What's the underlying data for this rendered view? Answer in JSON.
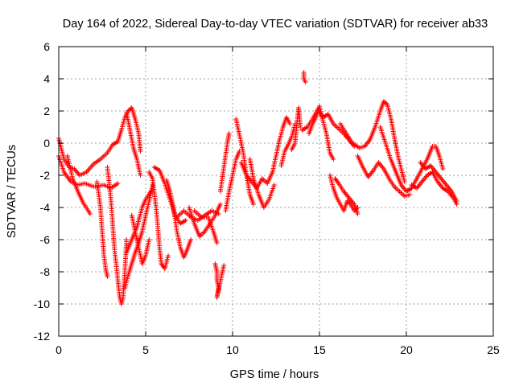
{
  "chart_data": {
    "type": "scatter",
    "title": "Day 164 of 2022, Sidereal Day-to-day VTEC variation (SDTVAR) for receiver ab33",
    "xlabel": "GPS time / hours",
    "ylabel": "SDTVAR / TECUs",
    "xlim": [
      0,
      25
    ],
    "ylim": [
      -12,
      6
    ],
    "xticks": [
      0,
      5,
      10,
      15,
      20,
      25
    ],
    "yticks": [
      -12,
      -10,
      -8,
      -6,
      -4,
      -2,
      0,
      2,
      4,
      6
    ],
    "xtick_labels": [
      "0",
      "5",
      "10",
      "15",
      "20",
      "25"
    ],
    "ytick_labels": [
      "-12",
      "-10",
      "-8",
      "-6",
      "-4",
      "-2",
      "0",
      "2",
      "4",
      "6"
    ],
    "grid": true,
    "marker": "+",
    "series": [
      {
        "name": "SDTVAR",
        "color": "#ff0000",
        "tracks": [
          [
            [
              0.0,
              0.3
            ],
            [
              0.3,
              -1.0
            ],
            [
              0.6,
              -1.5
            ],
            [
              0.9,
              -1.6
            ],
            [
              1.2,
              -2.0
            ],
            [
              1.6,
              -1.8
            ],
            [
              2.0,
              -1.3
            ],
            [
              2.4,
              -1.0
            ],
            [
              2.8,
              -0.6
            ],
            [
              3.1,
              -0.1
            ],
            [
              3.4,
              0.1
            ]
          ],
          [
            [
              0.0,
              -0.8
            ],
            [
              0.3,
              -1.8
            ],
            [
              0.7,
              -2.4
            ],
            [
              1.1,
              -2.6
            ],
            [
              1.5,
              -2.5
            ],
            [
              2.0,
              -2.7
            ],
            [
              2.6,
              -2.6
            ],
            [
              3.0,
              -2.8
            ],
            [
              3.4,
              -2.5
            ]
          ],
          [
            [
              0.5,
              -0.8
            ],
            [
              0.8,
              -2.2
            ],
            [
              1.1,
              -3.0
            ],
            [
              1.4,
              -3.7
            ],
            [
              1.7,
              -4.2
            ],
            [
              1.8,
              -4.4
            ]
          ],
          [
            [
              2.2,
              -2.4
            ],
            [
              2.4,
              -4.0
            ],
            [
              2.5,
              -5.5
            ],
            [
              2.6,
              -7.0
            ],
            [
              2.7,
              -7.8
            ],
            [
              2.8,
              -8.3
            ]
          ],
          [
            [
              2.8,
              -1.5
            ],
            [
              3.0,
              -3.5
            ],
            [
              3.2,
              -6.5
            ],
            [
              3.4,
              -8.5
            ],
            [
              3.5,
              -9.5
            ],
            [
              3.6,
              -10.0
            ],
            [
              3.7,
              -9.6
            ],
            [
              3.8,
              -8.0
            ],
            [
              3.9,
              -6.0
            ]
          ],
          [
            [
              3.4,
              0.1
            ],
            [
              3.6,
              0.8
            ],
            [
              3.8,
              1.6
            ],
            [
              4.0,
              2.0
            ],
            [
              4.2,
              2.2
            ],
            [
              4.4,
              1.5
            ],
            [
              4.6,
              0.6
            ],
            [
              4.7,
              -0.5
            ]
          ],
          [
            [
              3.9,
              1.9
            ],
            [
              4.1,
              0.8
            ],
            [
              4.3,
              -0.3
            ],
            [
              4.5,
              -1.0
            ],
            [
              4.7,
              -2.0
            ]
          ],
          [
            [
              3.9,
              -6.8
            ],
            [
              4.2,
              -6.0
            ],
            [
              4.5,
              -5.2
            ],
            [
              4.8,
              -4.0
            ],
            [
              5.0,
              -3.5
            ],
            [
              5.3,
              -3.0
            ]
          ],
          [
            [
              3.8,
              -9.0
            ],
            [
              4.0,
              -8.2
            ],
            [
              4.2,
              -7.5
            ],
            [
              4.4,
              -6.8
            ],
            [
              4.6,
              -6.2
            ],
            [
              4.8,
              -5.5
            ],
            [
              5.0,
              -4.5
            ],
            [
              5.2,
              -3.6
            ],
            [
              5.4,
              -2.6
            ]
          ],
          [
            [
              4.2,
              -4.5
            ],
            [
              4.4,
              -5.5
            ],
            [
              4.6,
              -6.5
            ],
            [
              4.8,
              -7.5
            ],
            [
              5.0,
              -7.0
            ],
            [
              5.2,
              -6.0
            ]
          ],
          [
            [
              5.2,
              -1.8
            ],
            [
              5.4,
              -2.2
            ],
            [
              5.6,
              -4.0
            ],
            [
              5.8,
              -6.5
            ],
            [
              5.9,
              -7.5
            ],
            [
              6.1,
              -7.8
            ],
            [
              6.3,
              -7.0
            ]
          ],
          [
            [
              5.5,
              -1.5
            ],
            [
              5.8,
              -1.7
            ],
            [
              6.1,
              -2.5
            ],
            [
              6.4,
              -3.5
            ],
            [
              6.7,
              -4.5
            ],
            [
              7.0,
              -5.0
            ],
            [
              7.3,
              -4.8
            ]
          ],
          [
            [
              6.2,
              -2.3
            ],
            [
              6.4,
              -3.0
            ],
            [
              6.6,
              -4.0
            ],
            [
              6.8,
              -5.5
            ],
            [
              7.0,
              -6.5
            ],
            [
              7.2,
              -7.1
            ],
            [
              7.4,
              -6.6
            ],
            [
              7.6,
              -6.0
            ]
          ],
          [
            [
              6.8,
              -4.6
            ],
            [
              7.2,
              -4.2
            ],
            [
              7.6,
              -4.6
            ],
            [
              8.0,
              -4.8
            ],
            [
              8.4,
              -4.5
            ],
            [
              8.8,
              -4.2
            ],
            [
              9.2,
              -4.4
            ]
          ],
          [
            [
              7.5,
              -4.0
            ],
            [
              7.8,
              -5.0
            ],
            [
              8.1,
              -5.8
            ],
            [
              8.4,
              -5.5
            ],
            [
              8.7,
              -5.0
            ],
            [
              9.0,
              -4.5
            ],
            [
              9.3,
              -3.8
            ]
          ],
          [
            [
              7.8,
              -4.2
            ],
            [
              8.2,
              -4.6
            ],
            [
              8.6,
              -4.6
            ],
            [
              8.9,
              -5.5
            ],
            [
              9.1,
              -6.2
            ]
          ],
          [
            [
              9.0,
              -7.5
            ],
            [
              9.1,
              -8.0
            ],
            [
              9.1,
              -8.5
            ],
            [
              9.2,
              -9.0
            ],
            [
              9.1,
              -9.6
            ],
            [
              9.5,
              -7.6
            ]
          ],
          [
            [
              9.3,
              -3.0
            ],
            [
              9.5,
              -1.5
            ],
            [
              9.7,
              0.0
            ],
            [
              9.8,
              0.6
            ]
          ],
          [
            [
              9.6,
              -4.2
            ],
            [
              9.8,
              -3.0
            ],
            [
              10.0,
              -2.0
            ],
            [
              10.2,
              -1.0
            ],
            [
              10.4,
              -0.5
            ]
          ],
          [
            [
              10.2,
              1.5
            ],
            [
              10.4,
              0.5
            ],
            [
              10.6,
              -0.5
            ],
            [
              10.8,
              -2.0
            ],
            [
              11.0,
              -3.2
            ],
            [
              11.2,
              -3.8
            ]
          ],
          [
            [
              10.5,
              -1.2
            ],
            [
              10.8,
              -2.0
            ],
            [
              11.1,
              -2.4
            ],
            [
              11.4,
              -2.8
            ],
            [
              11.7,
              -2.2
            ],
            [
              12.0,
              -2.5
            ],
            [
              12.3,
              -1.8
            ]
          ],
          [
            [
              11.0,
              -1.0
            ],
            [
              11.2,
              -2.2
            ],
            [
              11.5,
              -3.2
            ],
            [
              11.8,
              -4.0
            ],
            [
              12.1,
              -3.5
            ],
            [
              12.4,
              -2.6
            ]
          ],
          [
            [
              12.3,
              -1.8
            ],
            [
              12.5,
              -0.8
            ],
            [
              12.7,
              0.2
            ],
            [
              12.9,
              1.0
            ],
            [
              13.1,
              1.6
            ],
            [
              13.3,
              1.2
            ]
          ],
          [
            [
              12.8,
              -1.4
            ],
            [
              13.0,
              -0.5
            ],
            [
              13.2,
              -0.1
            ],
            [
              13.4,
              0.4
            ],
            [
              13.6,
              1.2
            ]
          ],
          [
            [
              13.4,
              -0.4
            ],
            [
              13.6,
              0.0
            ],
            [
              13.7,
              1.2
            ],
            [
              13.8,
              2.2
            ],
            [
              13.9,
              1.0
            ]
          ],
          [
            [
              14.1,
              4.4
            ],
            [
              14.1,
              4.0
            ],
            [
              14.2,
              3.8
            ]
          ],
          [
            [
              14.0,
              0.8
            ],
            [
              14.3,
              1.0
            ],
            [
              14.6,
              1.5
            ],
            [
              14.9,
              2.1
            ],
            [
              15.2,
              1.6
            ],
            [
              15.5,
              1.8
            ],
            [
              15.8,
              1.2
            ],
            [
              16.1,
              0.9
            ],
            [
              16.4,
              0.6
            ],
            [
              16.7,
              0.2
            ],
            [
              17.0,
              -0.2
            ]
          ],
          [
            [
              14.4,
              0.6
            ],
            [
              14.6,
              1.2
            ],
            [
              14.8,
              1.6
            ],
            [
              15.0,
              2.3
            ],
            [
              15.2,
              1.4
            ],
            [
              15.4,
              0.6
            ],
            [
              15.6,
              -0.6
            ],
            [
              15.8,
              -1.0
            ]
          ],
          [
            [
              15.6,
              -2.0
            ],
            [
              15.8,
              -2.8
            ],
            [
              16.0,
              -3.4
            ],
            [
              16.2,
              -3.8
            ],
            [
              16.4,
              -4.2
            ],
            [
              16.6,
              -3.6
            ],
            [
              16.8,
              -3.8
            ],
            [
              17.0,
              -4.2
            ],
            [
              17.2,
              -4.0
            ]
          ],
          [
            [
              15.9,
              -2.2
            ],
            [
              16.1,
              -2.5
            ],
            [
              16.4,
              -3.0
            ],
            [
              16.7,
              -3.4
            ],
            [
              17.0,
              -3.8
            ],
            [
              17.2,
              -4.4
            ]
          ],
          [
            [
              16.2,
              1.2
            ],
            [
              16.6,
              0.5
            ],
            [
              16.9,
              0.0
            ],
            [
              17.3,
              -0.3
            ],
            [
              17.6,
              -0.2
            ],
            [
              17.9,
              0.2
            ],
            [
              18.2,
              1.0
            ],
            [
              18.5,
              2.0
            ],
            [
              18.7,
              2.6
            ],
            [
              18.9,
              2.4
            ],
            [
              19.1,
              1.6
            ],
            [
              19.3,
              0.4
            ],
            [
              19.5,
              -0.7
            ],
            [
              19.7,
              -1.6
            ],
            [
              19.9,
              -2.4
            ]
          ],
          [
            [
              17.2,
              -0.8
            ],
            [
              17.5,
              -1.5
            ],
            [
              17.8,
              -2.1
            ],
            [
              18.1,
              -1.7
            ],
            [
              18.4,
              -1.2
            ],
            [
              18.7,
              -1.6
            ],
            [
              19.0,
              -2.2
            ],
            [
              19.3,
              -2.7
            ],
            [
              19.6,
              -3.0
            ],
            [
              19.9,
              -3.3
            ],
            [
              20.2,
              -3.2
            ]
          ],
          [
            [
              18.5,
              1.0
            ],
            [
              18.8,
              0.0
            ],
            [
              19.1,
              -1.0
            ],
            [
              19.4,
              -1.8
            ],
            [
              19.7,
              -2.6
            ],
            [
              20.0,
              -3.0
            ],
            [
              20.3,
              -2.8
            ],
            [
              20.6,
              -2.2
            ],
            [
              20.9,
              -1.6
            ],
            [
              21.2,
              -1.0
            ],
            [
              21.5,
              -0.2
            ],
            [
              21.7,
              -0.2
            ],
            [
              21.9,
              -0.8
            ],
            [
              22.1,
              -1.6
            ]
          ],
          [
            [
              20.3,
              -2.6
            ],
            [
              20.6,
              -2.8
            ],
            [
              20.9,
              -2.4
            ],
            [
              21.2,
              -2.0
            ],
            [
              21.5,
              -1.8
            ],
            [
              21.8,
              -2.4
            ],
            [
              22.1,
              -2.8
            ],
            [
              22.4,
              -3.0
            ],
            [
              22.7,
              -3.4
            ],
            [
              22.9,
              -3.8
            ]
          ],
          [
            [
              20.8,
              -1.2
            ],
            [
              21.1,
              -1.6
            ],
            [
              21.4,
              -1.4
            ],
            [
              21.7,
              -1.8
            ],
            [
              22.0,
              -2.2
            ],
            [
              22.3,
              -2.6
            ],
            [
              22.6,
              -3.0
            ],
            [
              22.9,
              -3.6
            ]
          ]
        ]
      }
    ]
  }
}
